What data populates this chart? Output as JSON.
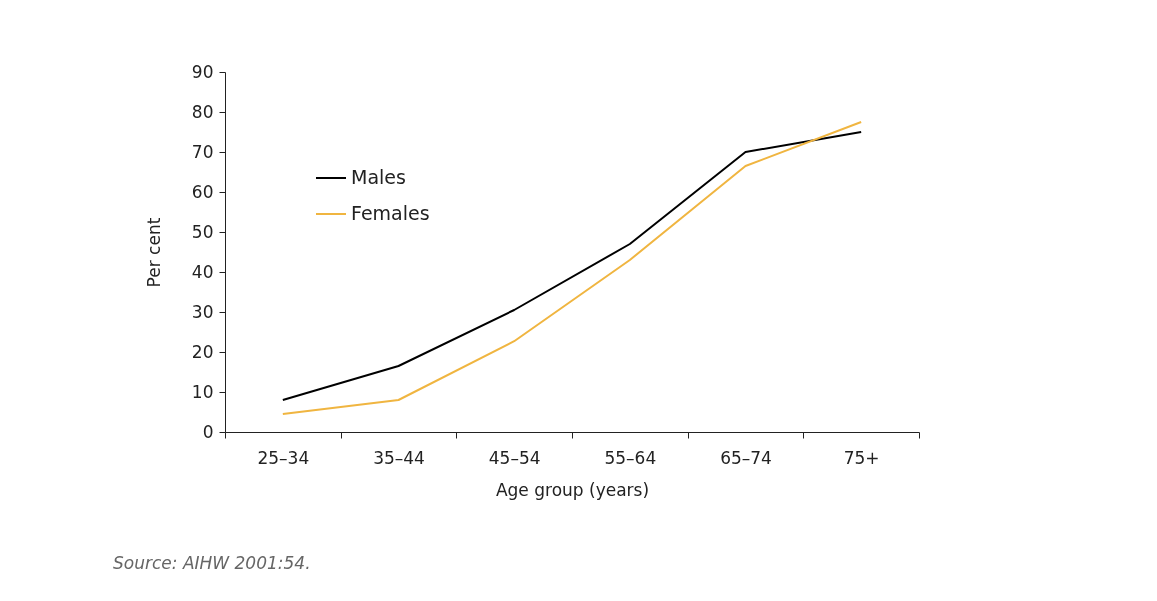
{
  "chart_data": {
    "type": "line",
    "xlabel": "Age group (years)",
    "ylabel": "Per cent",
    "categories": [
      "25–34",
      "35–44",
      "45–54",
      "55–64",
      "65–74",
      "75+"
    ],
    "series": [
      {
        "name": "Males",
        "color": "#000000",
        "values": [
          8,
          16.5,
          30.5,
          47,
          70,
          75
        ]
      },
      {
        "name": "Females",
        "color": "#f0b540",
        "values": [
          4.5,
          8,
          22.7,
          43,
          66.5,
          77.5
        ]
      }
    ],
    "ylim": [
      0,
      90
    ],
    "yticks": [
      0,
      10,
      20,
      30,
      40,
      50,
      60,
      70,
      80,
      90
    ],
    "grid": false,
    "legend": "top left",
    "marker": "none",
    "line_style": "solid",
    "annotations": [
      "Source: AIHW 2001:54."
    ]
  }
}
